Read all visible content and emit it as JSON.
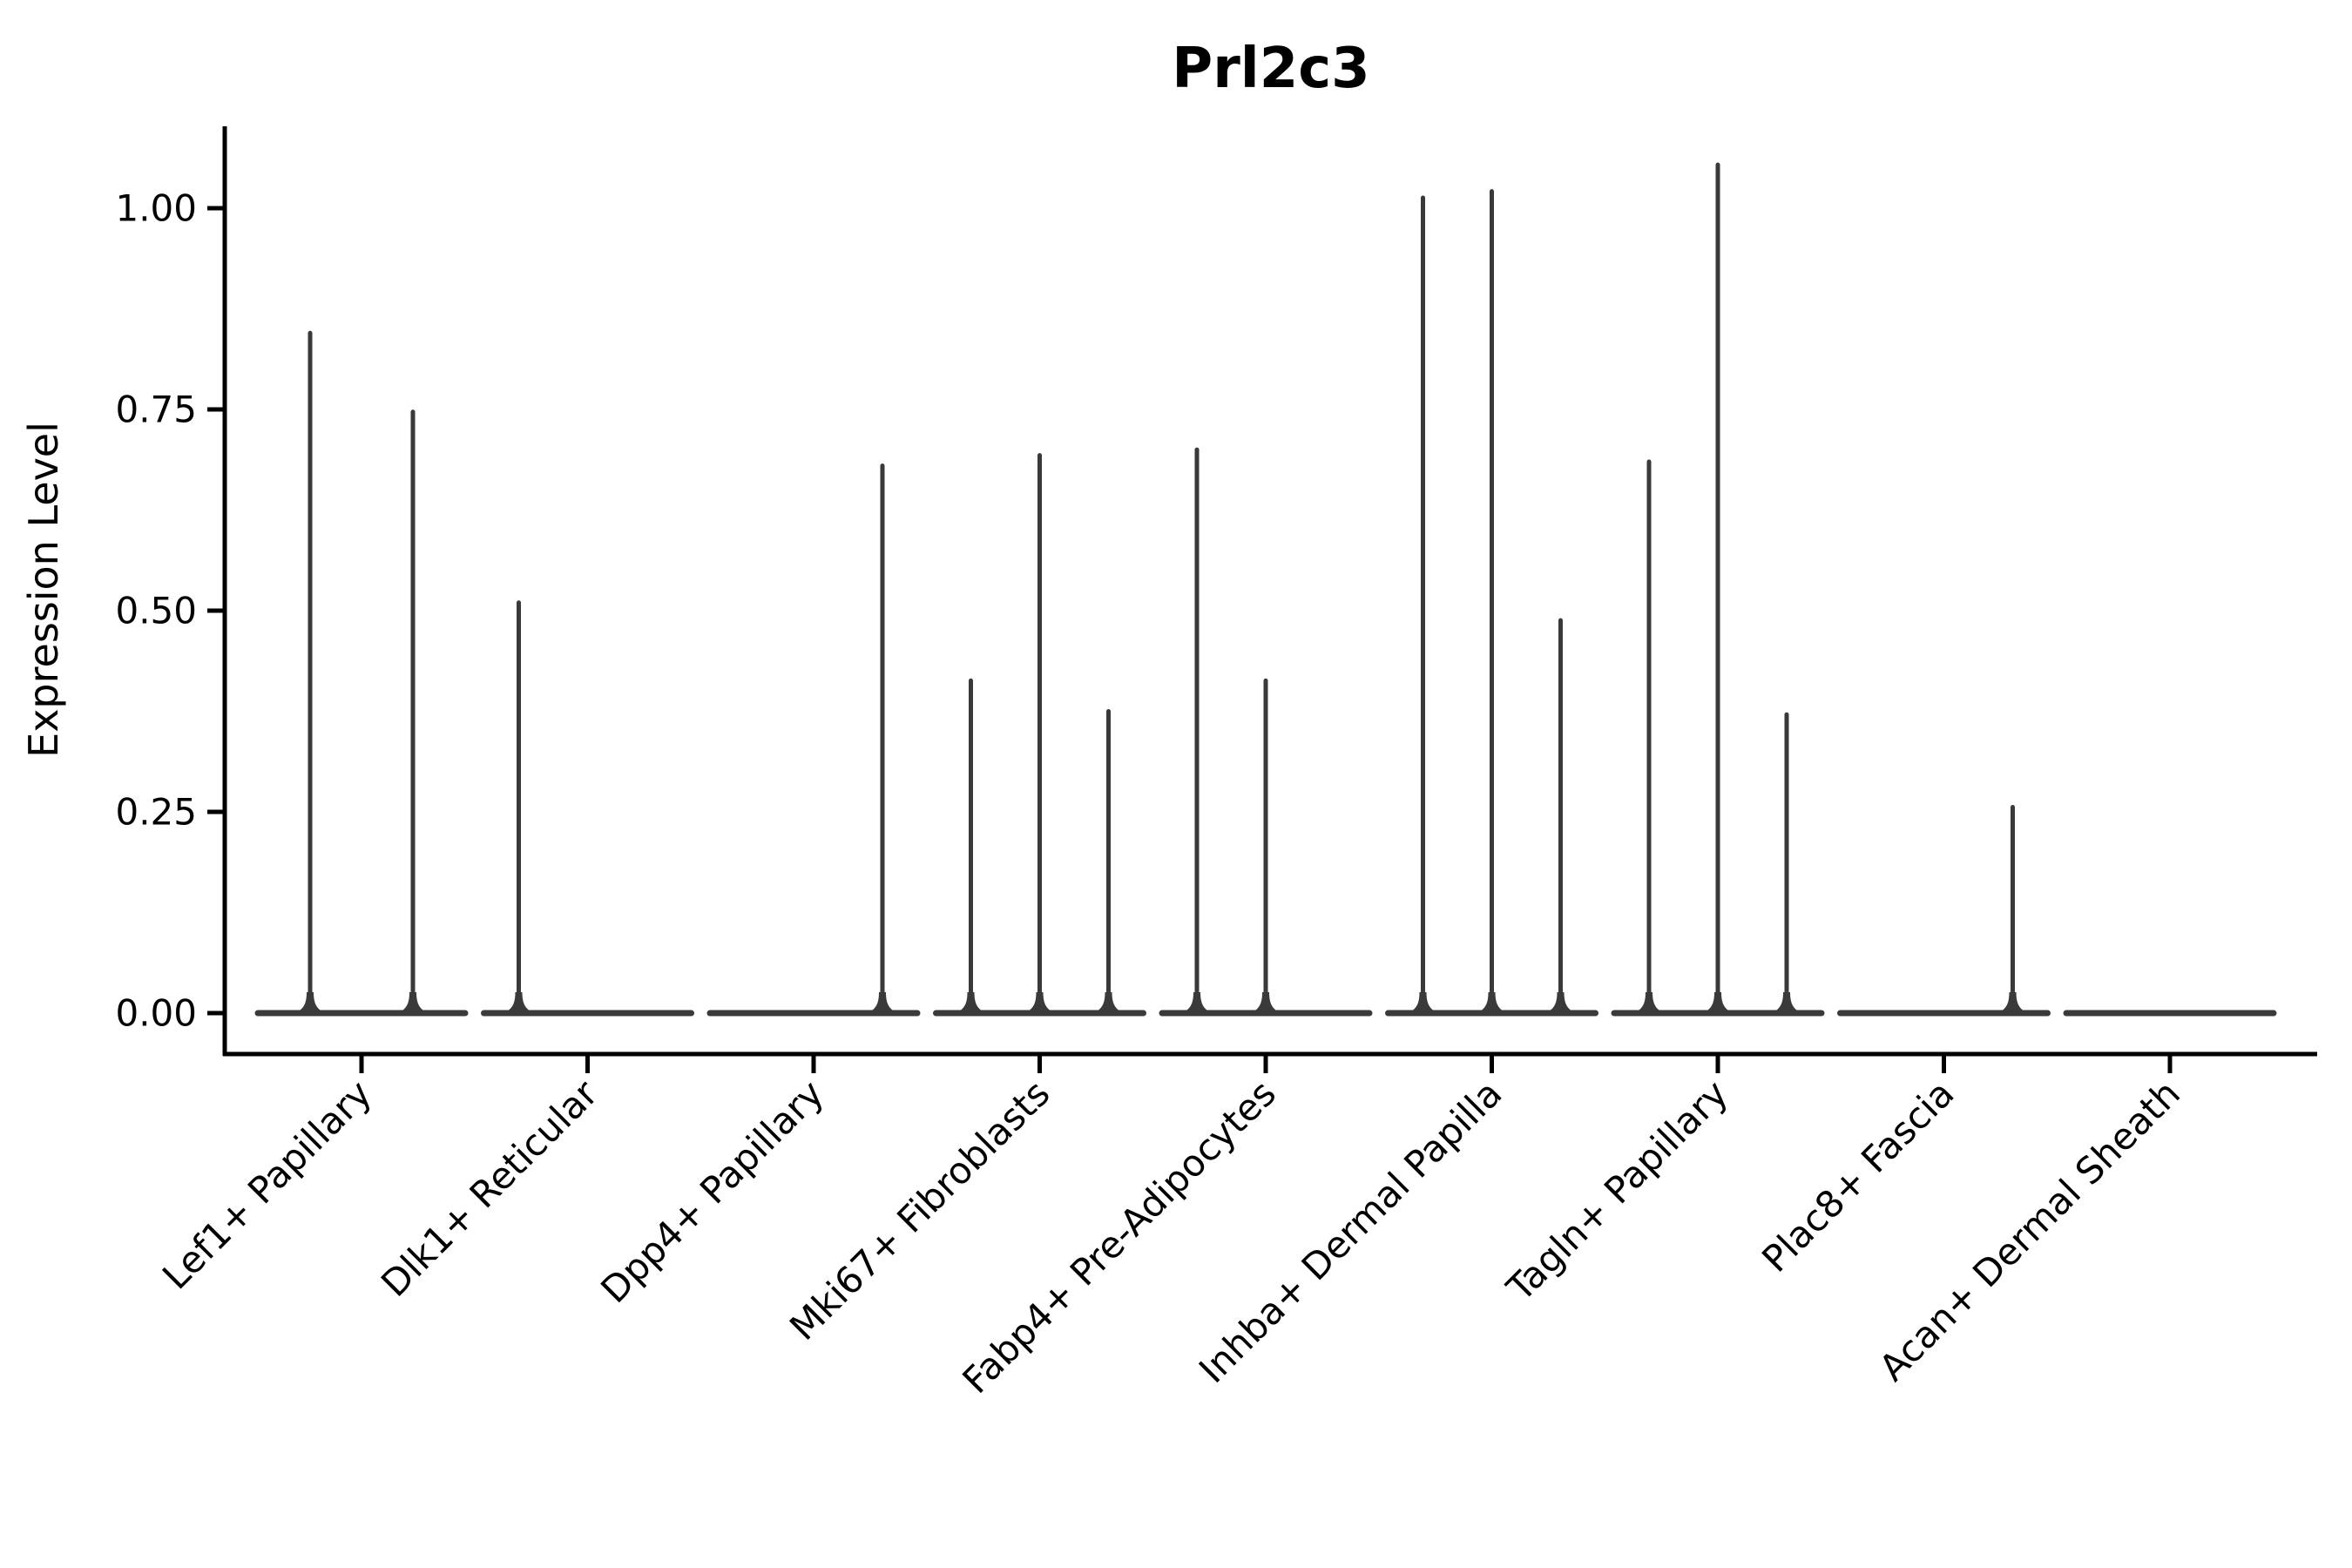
{
  "chart_data": {
    "type": "violin",
    "title": "Prl2c3",
    "xlabel": "",
    "ylabel": "Expression Level",
    "yticks": [
      "0.00",
      "0.25",
      "0.50",
      "0.75",
      "1.00"
    ],
    "ytick_values": [
      0.0,
      0.25,
      0.5,
      0.75,
      1.0
    ],
    "ylim": [
      -0.051,
      1.101
    ],
    "grid": false,
    "legend": null,
    "background_color": "#ffffff",
    "axis_color": "#000000",
    "violin_color": "#3a3a3a",
    "categories": [
      "Lef1+ Papillary",
      "Dlk1+ Reticular",
      "Dpp4+ Papillary",
      "Mki67+ Fibroblasts",
      "Fabp4+ Pre-Adipocytes",
      "Inhba+ Dermal Papilla",
      "Tagln+ Papillary",
      "Plac8+ Fascia",
      "Acan+ Dermal Sheath"
    ],
    "groups": [
      {
        "label": "Lef1+ Papillary",
        "violins": [
          {
            "pos": -59,
            "peak": 0.845
          },
          {
            "pos": 59,
            "peak": 0.747
          }
        ]
      },
      {
        "label": "Dlk1+ Reticular",
        "violins": [
          {
            "pos": -79,
            "peak": 0.51
          },
          {
            "pos": 0,
            "peak": null
          },
          {
            "pos": 79,
            "peak": null
          }
        ]
      },
      {
        "label": "Dpp4+ Papillary",
        "violins": [
          {
            "pos": -79,
            "peak": null
          },
          {
            "pos": 0,
            "peak": null
          },
          {
            "pos": 79,
            "peak": 0.68
          }
        ]
      },
      {
        "label": "Mki67+ Fibroblasts",
        "violins": [
          {
            "pos": -79,
            "peak": 0.413
          },
          {
            "pos": 0,
            "peak": 0.693
          },
          {
            "pos": 79,
            "peak": 0.375
          }
        ]
      },
      {
        "label": "Fabp4+ Pre-Adipocytes",
        "violins": [
          {
            "pos": -79,
            "peak": 0.7
          },
          {
            "pos": 0,
            "peak": 0.413
          },
          {
            "pos": 79,
            "peak": null
          }
        ]
      },
      {
        "label": "Inhba+ Dermal Papilla",
        "violins": [
          {
            "pos": -79,
            "peak": 1.013
          },
          {
            "pos": 0,
            "peak": 1.021
          },
          {
            "pos": 79,
            "peak": 0.488
          }
        ]
      },
      {
        "label": "Tagln+ Papillary",
        "violins": [
          {
            "pos": -79,
            "peak": 0.685
          },
          {
            "pos": 0,
            "peak": 1.054
          },
          {
            "pos": 79,
            "peak": 0.371
          }
        ]
      },
      {
        "label": "Plac8+ Fascia",
        "violins": [
          {
            "pos": -79,
            "peak": null
          },
          {
            "pos": 0,
            "peak": null
          },
          {
            "pos": 79,
            "peak": 0.256
          }
        ]
      },
      {
        "label": "Acan+ Dermal Sheath",
        "violins": [
          {
            "pos": -79,
            "peak": null
          },
          {
            "pos": 0,
            "peak": null
          },
          {
            "pos": 79,
            "peak": null
          }
        ]
      }
    ]
  }
}
